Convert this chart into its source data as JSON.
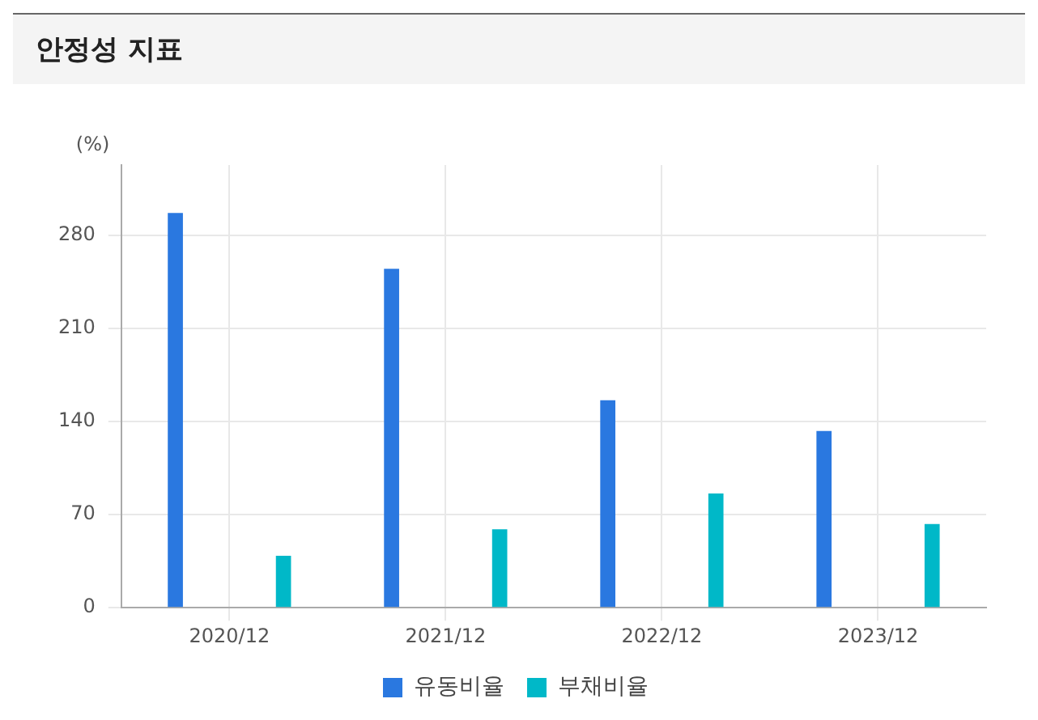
{
  "chart_data": {
    "type": "bar",
    "title": "안정성 지표",
    "ylabel": "(%)",
    "categories": [
      "2020/12",
      "2021/12",
      "2022/12",
      "2023/12"
    ],
    "series": [
      {
        "name": "유동비율",
        "color": "#2a78e0",
        "values": [
          297,
          255,
          156,
          133
        ]
      },
      {
        "name": "부채비율",
        "color": "#00b8c8",
        "values": [
          39,
          59,
          86,
          63
        ]
      }
    ],
    "ylim": [
      0,
      333
    ],
    "yticks": [
      0,
      70,
      140,
      210,
      280
    ],
    "grid": true,
    "legend": "bottom"
  }
}
